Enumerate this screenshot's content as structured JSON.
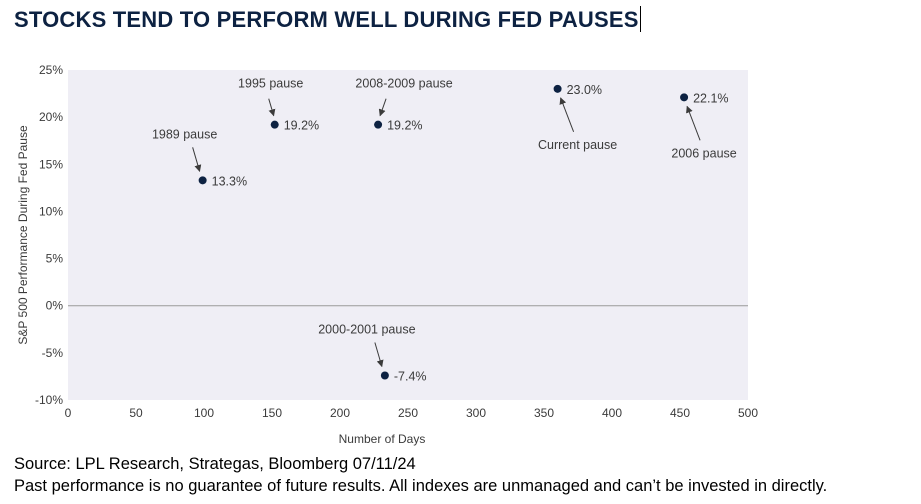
{
  "title": "STOCKS TEND TO PERFORM WELL DURING FED PAUSES",
  "footer": {
    "source": "Source: LPL Research, Strategas, Bloomberg 07/11/24",
    "disclaimer": "Past performance is no guarantee of future results. All indexes are unmanaged and can’t be invested in directly."
  },
  "colors": {
    "point": "#0d2242",
    "plot_background": "#efeef5",
    "zero_line": "#9a9a9a",
    "text": "#3b3b3b"
  },
  "chart_data": {
    "type": "scatter",
    "xlabel": "Number of Days",
    "ylabel": "S&P 500 Performance During Fed Pause",
    "xlim": [
      0,
      500
    ],
    "ylim": [
      -10,
      25
    ],
    "x_ticks": [
      0,
      50,
      100,
      150,
      200,
      250,
      300,
      350,
      400,
      450,
      500
    ],
    "x_tick_labels": [
      "0",
      "50",
      "100",
      "150",
      "200",
      "250",
      "300",
      "350",
      "400",
      "450",
      "500"
    ],
    "y_ticks": [
      -10,
      -5,
      0,
      5,
      10,
      15,
      20,
      25
    ],
    "y_tick_labels": [
      "-10%",
      "-5%",
      "0%",
      "5%",
      "10%",
      "15%",
      "20%",
      "25%"
    ],
    "grid": false,
    "zero_line": true,
    "points": [
      {
        "name": "1989 pause",
        "x": 99,
        "y": 13.3,
        "value_label": "13.3%",
        "annotation_position": "above-left"
      },
      {
        "name": "1995 pause",
        "x": 152,
        "y": 19.2,
        "value_label": "19.2%",
        "annotation_position": "above"
      },
      {
        "name": "2008-2009 pause",
        "x": 228,
        "y": 19.2,
        "value_label": "19.2%",
        "annotation_position": "above-right"
      },
      {
        "name": "Current pause",
        "x": 360,
        "y": 23.0,
        "value_label": "23.0%",
        "annotation_position": "below-right"
      },
      {
        "name": "2006 pause",
        "x": 453,
        "y": 22.1,
        "value_label": "22.1%",
        "annotation_position": "below-right"
      },
      {
        "name": "2000-2001 pause",
        "x": 233,
        "y": -7.4,
        "value_label": "-7.4%",
        "annotation_position": "above-left"
      }
    ]
  }
}
